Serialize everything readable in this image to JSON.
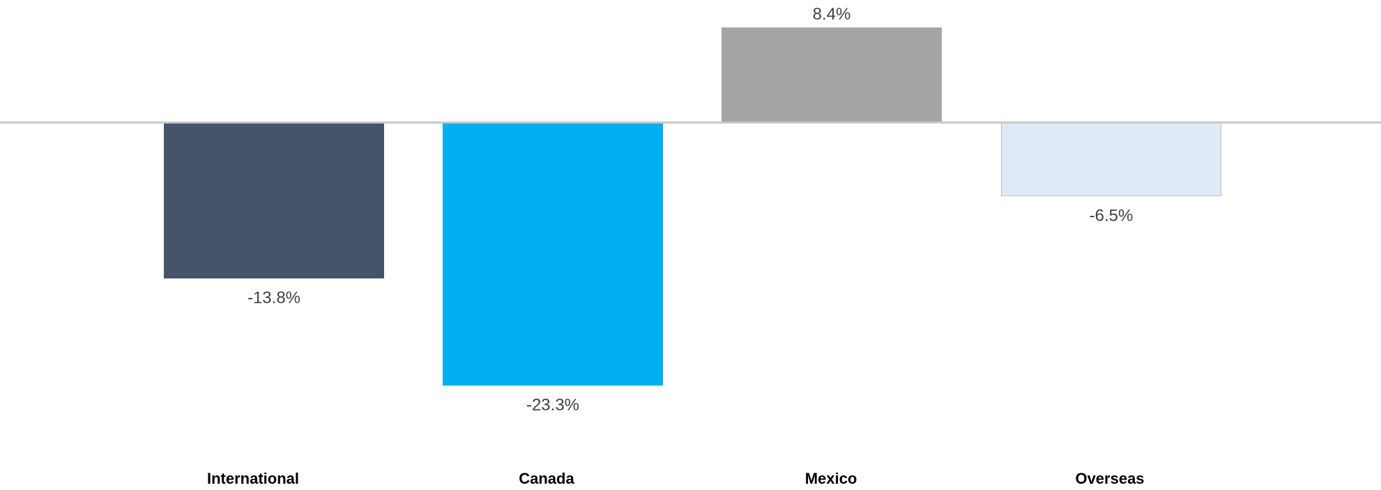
{
  "chart_data": {
    "type": "bar",
    "title": "",
    "xlabel": "",
    "ylabel": "",
    "categories": [
      "International",
      "Canada",
      "Mexico",
      "Overseas"
    ],
    "values": [
      -13.8,
      -23.3,
      8.4,
      -6.5
    ],
    "data_labels": [
      "-13.8%",
      "-23.3%",
      "8.4%",
      "-6.5%"
    ],
    "colors": [
      "#44546a",
      "#00b0f0",
      "#a5a5a5",
      "#deeaf6"
    ],
    "bar_border_colors": [
      "#44546a",
      "#00b0f0",
      "#a5a5a5",
      "#b4c3d2"
    ],
    "zero_line_color": "#c8c8c8",
    "ylim": [
      -23.3,
      8.4
    ],
    "grid": false,
    "legend": "none"
  }
}
